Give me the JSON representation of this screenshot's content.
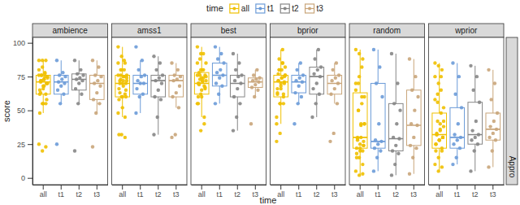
{
  "chart_data": {
    "type": "box",
    "x_label": "time",
    "y_label": "score",
    "legend_title": "time",
    "legend": "top",
    "strip_label": "Appro",
    "categories": [
      "all",
      "t1",
      "t2",
      "t3"
    ],
    "series": [
      {
        "name": "all",
        "color": "#EFC000"
      },
      {
        "name": "t1",
        "color": "#6C9BD8"
      },
      {
        "name": "t2",
        "color": "#868686"
      },
      {
        "name": "t3",
        "color": "#C9A57A"
      }
    ],
    "ylim": [
      -5,
      104
    ],
    "yticks": [
      0,
      25,
      50,
      75,
      100
    ],
    "facets": [
      {
        "name": "ambience",
        "boxes": [
          {
            "q1": 62,
            "median": 71,
            "q3": 76,
            "whisker_low": 48,
            "whisker_high": 87,
            "points": [
              25,
              55,
              62,
              65,
              68,
              70,
              71,
              73,
              75,
              76,
              78,
              87,
              20,
              55,
              62,
              66,
              70,
              72,
              73,
              74,
              76,
              77,
              80,
              87,
              23,
              48,
              55,
              58,
              63,
              68,
              70,
              72,
              75,
              76,
              82,
              87
            ]
          },
          {
            "q1": 62,
            "median": 71,
            "q3": 76,
            "whisker_low": 55,
            "whisker_high": 87,
            "points": [
              25,
              55,
              62,
              65,
              68,
              70,
              71,
              73,
              75,
              76,
              78,
              87
            ]
          },
          {
            "q1": 65,
            "median": 73,
            "q3": 77,
            "whisker_low": 55,
            "whisker_high": 87,
            "points": [
              20,
              55,
              62,
              66,
              70,
              72,
              73,
              74,
              76,
              77,
              80,
              87
            ]
          },
          {
            "q1": 58,
            "median": 70,
            "q3": 76,
            "whisker_low": 48,
            "whisker_high": 87,
            "points": [
              23,
              48,
              55,
              58,
              63,
              68,
              70,
              72,
              75,
              76,
              82,
              87
            ]
          }
        ]
      },
      {
        "name": "amss1",
        "boxes": [
          {
            "q1": 60,
            "median": 70,
            "q3": 76,
            "whisker_low": 45,
            "whisker_high": 97,
            "points": [
              48,
              60,
              62,
              66,
              70,
              70,
              72,
              75,
              76,
              80,
              87,
              97,
              32,
              45,
              58,
              60,
              65,
              70,
              72,
              74,
              76,
              80,
              85,
              90,
              30,
              32,
              52,
              60,
              63,
              68,
              72,
              73,
              75,
              76,
              80,
              85
            ]
          },
          {
            "q1": 62,
            "median": 70,
            "q3": 76,
            "whisker_low": 48,
            "whisker_high": 87,
            "points": [
              48,
              60,
              62,
              66,
              70,
              70,
              72,
              75,
              76,
              80,
              87,
              97
            ]
          },
          {
            "q1": 60,
            "median": 72,
            "q3": 76,
            "whisker_low": 32,
            "whisker_high": 90,
            "points": [
              32,
              45,
              58,
              60,
              65,
              70,
              72,
              74,
              76,
              80,
              85,
              90
            ]
          },
          {
            "q1": 60,
            "median": 72,
            "q3": 76,
            "whisker_low": 52,
            "whisker_high": 85,
            "points": [
              30,
              32,
              52,
              60,
              63,
              68,
              72,
              73,
              75,
              76,
              80,
              85
            ]
          }
        ]
      },
      {
        "name": "best",
        "boxes": [
          {
            "q1": 62,
            "median": 70,
            "q3": 78,
            "whisker_low": 45,
            "whisker_high": 97,
            "points": [
              55,
              62,
              68,
              70,
              74,
              76,
              78,
              80,
              85,
              88,
              92,
              97,
              35,
              45,
              55,
              60,
              66,
              70,
              72,
              75,
              76,
              80,
              85,
              92,
              40,
              60,
              65,
              67,
              69,
              71,
              72,
              73,
              74,
              76,
              80
            ]
          },
          {
            "q1": 68,
            "median": 76,
            "q3": 85,
            "whisker_low": 55,
            "whisker_high": 97,
            "points": [
              55,
              62,
              68,
              70,
              74,
              76,
              78,
              80,
              85,
              88,
              92,
              97
            ]
          },
          {
            "q1": 60,
            "median": 70,
            "q3": 76,
            "whisker_low": 35,
            "whisker_high": 92,
            "points": [
              35,
              45,
              55,
              60,
              66,
              70,
              72,
              75,
              76,
              80,
              85,
              92
            ]
          },
          {
            "q1": 67,
            "median": 71,
            "q3": 74,
            "whisker_low": 60,
            "whisker_high": 80,
            "points": [
              40,
              60,
              65,
              67,
              69,
              71,
              72,
              73,
              74,
              76,
              80
            ]
          }
        ]
      },
      {
        "name": "bprior",
        "boxes": [
          {
            "q1": 60,
            "median": 71,
            "q3": 76,
            "whisker_low": 40,
            "whisker_high": 95,
            "points": [
              40,
              55,
              60,
              63,
              68,
              71,
              72,
              74,
              76,
              80,
              85,
              45,
              55,
              62,
              66,
              70,
              75,
              77,
              80,
              82,
              88,
              95,
              27,
              33,
              55,
              62,
              66,
              70,
              72,
              74,
              76,
              80,
              85
            ]
          },
          {
            "q1": 63,
            "median": 71,
            "q3": 76,
            "whisker_low": 55,
            "whisker_high": 85,
            "points": [
              40,
              55,
              60,
              63,
              68,
              71,
              72,
              74,
              76,
              80,
              85
            ]
          },
          {
            "q1": 62,
            "median": 75,
            "q3": 82,
            "whisker_low": 45,
            "whisker_high": 95,
            "points": [
              45,
              55,
              62,
              66,
              70,
              75,
              77,
              80,
              82,
              88,
              95
            ]
          },
          {
            "q1": 62,
            "median": 70,
            "q3": 76,
            "whisker_low": 55,
            "whisker_high": 85,
            "points": [
              27,
              33,
              55,
              62,
              66,
              70,
              72,
              74,
              76,
              80,
              85
            ]
          }
        ]
      },
      {
        "name": "random",
        "boxes": [
          {
            "q1": 22,
            "median": 30,
            "q3": 63,
            "whisker_low": 2,
            "whisker_high": 95,
            "points": [
              5,
              15,
              20,
              22,
              25,
              27,
              28,
              40,
              60,
              70,
              82,
              95,
              2,
              10,
              18,
              20,
              24,
              29,
              30,
              40,
              50,
              55,
              70,
              92,
              3,
              15,
              22,
              24,
              30,
              39,
              40,
              50,
              60,
              65,
              75,
              88
            ]
          },
          {
            "q1": 22,
            "median": 27,
            "q3": 70,
            "whisker_low": 5,
            "whisker_high": 95,
            "points": [
              5,
              15,
              20,
              22,
              25,
              27,
              28,
              40,
              60,
              70,
              82,
              95
            ]
          },
          {
            "q1": 20,
            "median": 29,
            "q3": 55,
            "whisker_low": 2,
            "whisker_high": 92,
            "points": [
              2,
              10,
              18,
              20,
              24,
              29,
              30,
              40,
              50,
              55,
              70,
              92
            ]
          },
          {
            "q1": 24,
            "median": 39,
            "q3": 65,
            "whisker_low": 3,
            "whisker_high": 88,
            "points": [
              3,
              15,
              22,
              24,
              30,
              39,
              40,
              50,
              60,
              65,
              75,
              88
            ]
          }
        ]
      },
      {
        "name": "wprior",
        "boxes": [
          {
            "q1": 22,
            "median": 32,
            "q3": 48,
            "whisker_low": 5,
            "whisker_high": 85,
            "points": [
              10,
              15,
              22,
              25,
              28,
              30,
              32,
              40,
              52,
              62,
              75,
              85,
              5,
              20,
              25,
              28,
              30,
              32,
              35,
              42,
              56,
              65,
              75,
              83,
              8,
              20,
              28,
              30,
              33,
              36,
              38,
              42,
              48,
              58,
              70,
              80
            ]
          },
          {
            "q1": 22,
            "median": 30,
            "q3": 52,
            "whisker_low": 10,
            "whisker_high": 85,
            "points": [
              10,
              15,
              22,
              25,
              28,
              30,
              32,
              40,
              52,
              62,
              75,
              85
            ]
          },
          {
            "q1": 25,
            "median": 32,
            "q3": 56,
            "whisker_low": 5,
            "whisker_high": 83,
            "points": [
              5,
              20,
              25,
              28,
              30,
              32,
              35,
              42,
              56,
              65,
              75,
              83
            ]
          },
          {
            "q1": 28,
            "median": 36,
            "q3": 48,
            "whisker_low": 8,
            "whisker_high": 80,
            "points": [
              8,
              20,
              28,
              30,
              33,
              36,
              38,
              42,
              48,
              58,
              70,
              80
            ]
          }
        ]
      }
    ]
  }
}
